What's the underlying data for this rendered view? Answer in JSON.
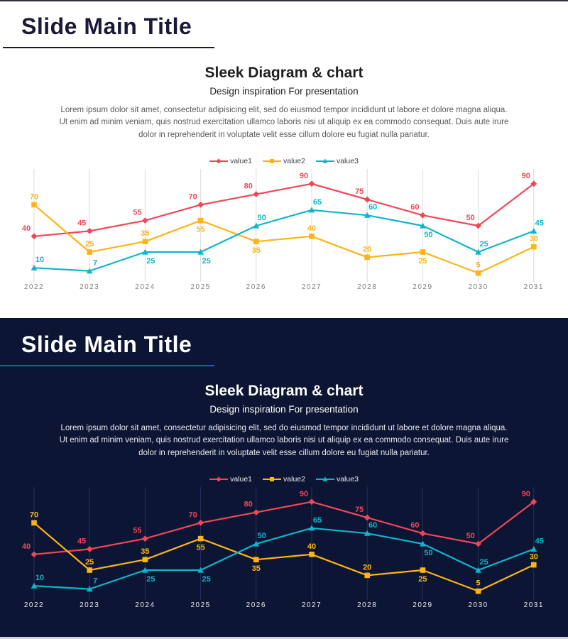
{
  "page": {
    "top_border_color": "#2e2e3c",
    "bottom_strip_color": "#d2d4dc"
  },
  "slides": [
    {
      "theme": "light",
      "title": "Slide Main Title",
      "heading": "Sleek Diagram & chart",
      "subheading": "Design inspiration For presentation",
      "body": "Lorem ipsum dolor sit amet, consectetur adipisicing elit, sed do eiusmod tempor incididunt ut labore et dolore magna aliqua. Ut enim ad minim veniam, quis nostrud exercitation ullamco laboris nisi ut aliquip ex ea commodo consequat. Duis aute irure dolor in reprehenderit in voluptate velit esse cillum dolore eu fugiat nulla pariatur."
    },
    {
      "theme": "dark",
      "title": "Slide Main Title",
      "heading": "Sleek Diagram & chart",
      "subheading": "Design inspiration For presentation",
      "body": "Lorem ipsum dolor sit amet, consectetur adipisicing elit, sed do eiusmod tempor incididunt ut labore et dolore magna aliqua. Ut enim ad minim veniam, quis nostrud exercitation ullamco laboris nisi ut aliquip ex ea commodo consequat. Duis aute irure dolor in reprehenderit in voluptate velit esse cillum dolore eu fugiat nulla pariatur."
    }
  ],
  "chart_data": {
    "type": "line",
    "x": [
      "2022",
      "2023",
      "2024",
      "2025",
      "2026",
      "2027",
      "2028",
      "2029",
      "2030",
      "2031"
    ],
    "ylim": [
      0,
      100
    ],
    "grid": "vertical-only",
    "legend_position": "top-center",
    "series": [
      {
        "name": "value1",
        "color": "#ef4758",
        "marker": "diamond",
        "values": [
          40,
          45,
          55,
          70,
          80,
          90,
          75,
          60,
          50,
          90
        ],
        "label_pos": [
          "above",
          "above",
          "above",
          "above",
          "above",
          "above",
          "above",
          "above",
          "above",
          "above"
        ]
      },
      {
        "name": "value2",
        "color": "#fcb514",
        "marker": "square",
        "values": [
          70,
          25,
          35,
          55,
          35,
          40,
          20,
          25,
          5,
          30
        ],
        "label_pos": [
          "above",
          "above",
          "above",
          "below",
          "below",
          "above",
          "above",
          "below",
          "above",
          "above"
        ]
      },
      {
        "name": "value3",
        "color": "#10b5cb",
        "marker": "triangle",
        "values": [
          10,
          7,
          25,
          25,
          50,
          65,
          60,
          50,
          25,
          45
        ],
        "label_pos": [
          "above",
          "above",
          "below",
          "below",
          "above",
          "above",
          "above",
          "below",
          "above",
          "above"
        ]
      }
    ]
  },
  "themes": {
    "light": {
      "background": "#ffffff",
      "title_color": "#1a1a38",
      "underline_color": "#1a1a38",
      "heading_color": "#1f1f1f",
      "body_color": "#595959",
      "grid": "#dcdcdc",
      "axis_text": "#7f7f7f",
      "legend_text": "#404040"
    },
    "dark": {
      "background": "#0c1533",
      "title_color": "#ffffff",
      "underline_color": "#2256c0",
      "heading_color": "#ffffff",
      "body_color": "#e8e9f2",
      "grid": "#22335c",
      "axis_text": "#e9e9f0",
      "legend_text": "#eceef4"
    }
  }
}
